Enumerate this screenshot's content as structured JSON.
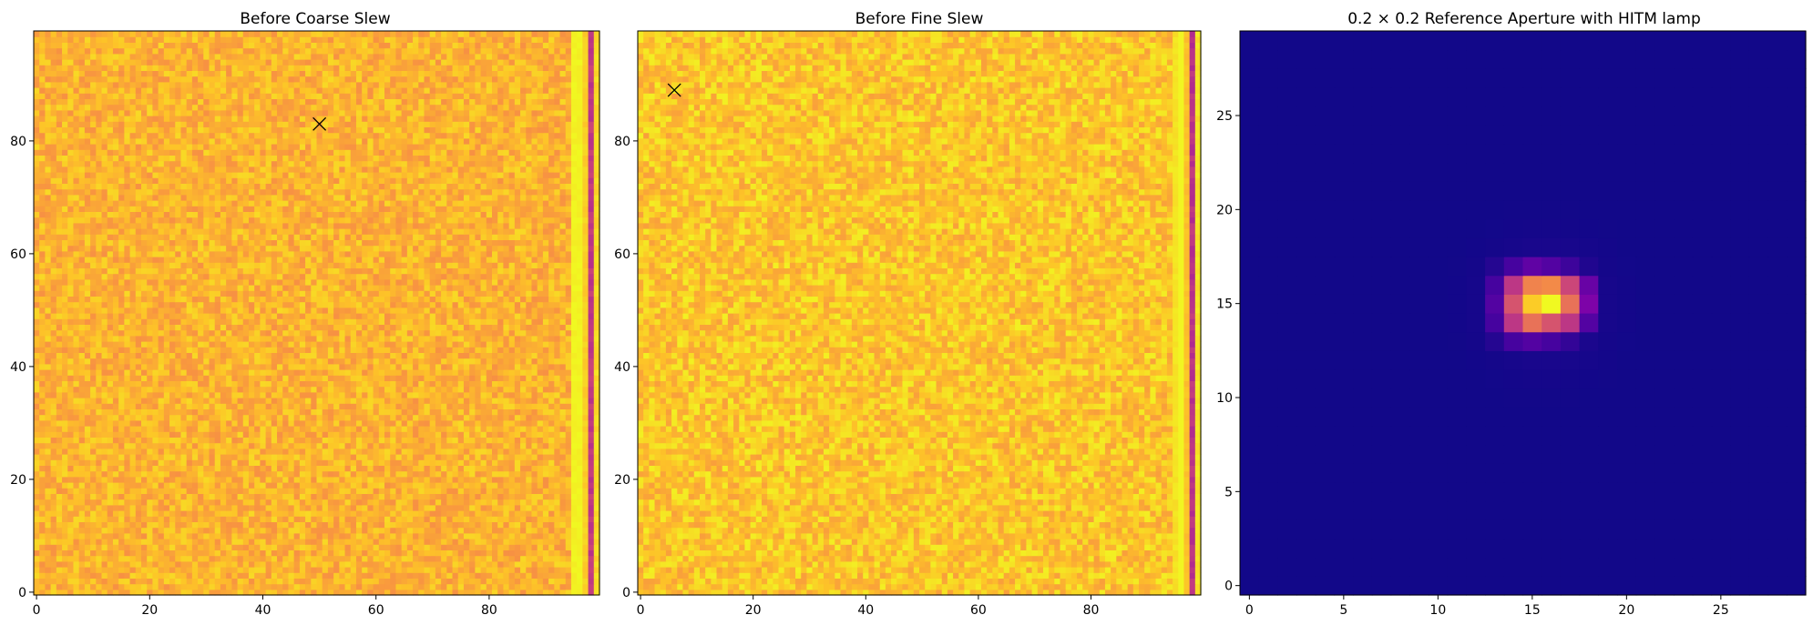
{
  "chart_data": [
    {
      "type": "heatmap",
      "title": "Before Coarse Slew",
      "colormap": "plasma",
      "grid": false,
      "xlim": [
        -0.5,
        99.5
      ],
      "ylim": [
        -0.5,
        99.5
      ],
      "x_ticks": [
        0,
        20,
        40,
        60,
        80
      ],
      "y_ticks": [
        0,
        20,
        40,
        60,
        80
      ],
      "description_of_values": "uniform noise near high end of colormap; bright columns at x=95-96, dark column at x=98",
      "marker": {
        "symbol": "x",
        "x": 50,
        "y": 83
      }
    },
    {
      "type": "heatmap",
      "title": "Before Fine Slew",
      "colormap": "plasma",
      "grid": false,
      "xlim": [
        -0.5,
        99.5
      ],
      "ylim": [
        -0.5,
        99.5
      ],
      "x_ticks": [
        0,
        20,
        40,
        60,
        80
      ],
      "y_ticks": [
        0,
        20,
        40,
        60,
        80
      ],
      "marker": {
        "symbol": "x",
        "x": 6,
        "y": 89
      }
    },
    {
      "type": "heatmap",
      "title": "0.2 × 0.2 Reference Aperture with HITM lamp",
      "colormap": "plasma",
      "grid": false,
      "xlim": [
        -0.5,
        29.5
      ],
      "ylim": [
        -0.5,
        29.5
      ],
      "x_ticks": [
        0,
        5,
        10,
        15,
        20,
        25
      ],
      "y_ticks": [
        0,
        5,
        10,
        15,
        20,
        25
      ],
      "peak": {
        "x": 16,
        "y": 15,
        "value": 1.0
      },
      "peak_rows": [
        {
          "y": 17,
          "values": {
            "13": 0.05,
            "14": 0.12,
            "15": 0.18,
            "16": 0.15,
            "17": 0.1,
            "18": 0.04
          }
        },
        {
          "y": 16,
          "values": {
            "13": 0.12,
            "14": 0.45,
            "15": 0.7,
            "16": 0.72,
            "17": 0.5,
            "18": 0.2
          }
        },
        {
          "y": 15,
          "values": {
            "13": 0.15,
            "14": 0.55,
            "15": 0.9,
            "16": 1.0,
            "17": 0.65,
            "18": 0.25
          }
        },
        {
          "y": 14,
          "values": {
            "13": 0.12,
            "14": 0.45,
            "15": 0.65,
            "16": 0.55,
            "17": 0.45,
            "18": 0.15
          }
        },
        {
          "y": 13,
          "values": {
            "13": 0.05,
            "14": 0.12,
            "15": 0.15,
            "16": 0.12,
            "17": 0.08,
            "18": 0.03
          }
        }
      ]
    }
  ]
}
